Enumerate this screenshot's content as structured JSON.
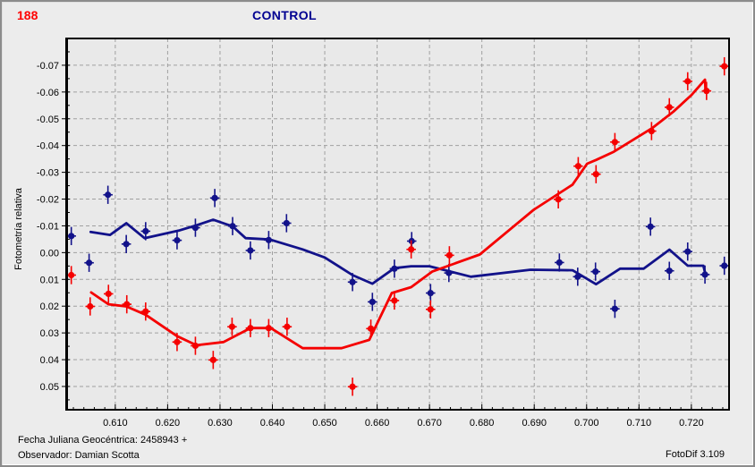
{
  "header": {
    "object_number": "188",
    "title": "CONTROL"
  },
  "footer": {
    "julian_date": "Fecha Juliana Geocéntrica: 2458943 +",
    "observer": "Observador: Damian Scotta",
    "software": "FotoDif 3.109"
  },
  "chart_data": {
    "type": "scatter",
    "title": "CONTROL",
    "xlabel": "",
    "ylabel": "Fotometría relativa",
    "grid": true,
    "legend_position": "none",
    "y_axis_inverted": true,
    "x_domain": [
      0.6008,
      0.7272
    ],
    "y_domain": [
      -0.08,
      0.0587
    ],
    "x_ticks": [
      "0.610",
      "0.620",
      "0.630",
      "0.640",
      "0.650",
      "0.660",
      "0.670",
      "0.680",
      "0.690",
      "0.700",
      "0.710",
      "0.720"
    ],
    "y_ticks": [
      "-0.07",
      "-0.06",
      "-0.05",
      "-0.04",
      "-0.03",
      "-0.02",
      "-0.01",
      "0.00",
      "0.01",
      "0.02",
      "0.03",
      "0.04",
      "0.05"
    ],
    "x_minor_step": 0.002,
    "y_minor_step": 0.005,
    "error_y_half": 0.0034,
    "error_x_half": 0.0009,
    "colors": {
      "plot_bg": "#e9e9e9",
      "grid": "#a0a0a0",
      "frame": "#000000",
      "red_series": "#f50000",
      "blue_series": "#12128a",
      "title_blue": "#000091",
      "object_red": "#ff0000"
    },
    "series": [
      {
        "id": "blue",
        "color": "#12128a",
        "points": [
          [
            0.6016,
            -0.0062
          ],
          [
            0.605,
            0.0038
          ],
          [
            0.6086,
            -0.0216
          ],
          [
            0.6121,
            -0.0032
          ],
          [
            0.6158,
            -0.008
          ],
          [
            0.6218,
            -0.0046
          ],
          [
            0.6253,
            -0.0093
          ],
          [
            0.629,
            -0.0204
          ],
          [
            0.6324,
            -0.0099
          ],
          [
            0.6358,
            -0.0008
          ],
          [
            0.6393,
            -0.0047
          ],
          [
            0.6427,
            -0.011
          ],
          [
            0.6553,
            0.011
          ],
          [
            0.6591,
            0.0184
          ],
          [
            0.6633,
            0.006
          ],
          [
            0.6666,
            -0.0043
          ],
          [
            0.6702,
            0.0151
          ],
          [
            0.6737,
            0.0076
          ],
          [
            0.6948,
            0.0037
          ],
          [
            0.6983,
            0.009
          ],
          [
            0.7017,
            0.0071
          ],
          [
            0.7054,
            0.021
          ],
          [
            0.7122,
            -0.0097
          ],
          [
            0.7158,
            0.0068
          ],
          [
            0.7193,
            -0.0004
          ],
          [
            0.7226,
            0.0082
          ],
          [
            0.7263,
            0.0049
          ]
        ],
        "trend": [
          [
            0.6053,
            -0.0077
          ],
          [
            0.609,
            -0.0066
          ],
          [
            0.6121,
            -0.011
          ],
          [
            0.6156,
            -0.0054
          ],
          [
            0.6221,
            -0.0082
          ],
          [
            0.6255,
            -0.0102
          ],
          [
            0.6287,
            -0.0123
          ],
          [
            0.6324,
            -0.0098
          ],
          [
            0.6349,
            -0.0054
          ],
          [
            0.6395,
            -0.0049
          ],
          [
            0.6458,
            -0.0012
          ],
          [
            0.65,
            0.0018
          ],
          [
            0.6553,
            0.0084
          ],
          [
            0.6591,
            0.0116
          ],
          [
            0.6633,
            0.0058
          ],
          [
            0.6665,
            0.0051
          ],
          [
            0.67,
            0.0051
          ],
          [
            0.6779,
            0.009
          ],
          [
            0.6893,
            0.0064
          ],
          [
            0.6973,
            0.0066
          ],
          [
            0.7018,
            0.0118
          ],
          [
            0.7064,
            0.006
          ],
          [
            0.7109,
            0.006
          ],
          [
            0.7158,
            -0.0011
          ],
          [
            0.7193,
            0.0049
          ],
          [
            0.7223,
            0.0049
          ],
          [
            0.7227,
            0.0082
          ]
        ]
      },
      {
        "id": "red",
        "color": "#f50000",
        "points": [
          [
            0.6016,
            0.0084
          ],
          [
            0.6052,
            0.0201
          ],
          [
            0.6087,
            0.0154
          ],
          [
            0.6122,
            0.0193
          ],
          [
            0.6158,
            0.022
          ],
          [
            0.6218,
            0.0334
          ],
          [
            0.6253,
            0.0348
          ],
          [
            0.6287,
            0.0401
          ],
          [
            0.6323,
            0.0277
          ],
          [
            0.6358,
            0.0282
          ],
          [
            0.6393,
            0.0282
          ],
          [
            0.6428,
            0.0277
          ],
          [
            0.6553,
            0.0501
          ],
          [
            0.6588,
            0.0284
          ],
          [
            0.6633,
            0.0179
          ],
          [
            0.6665,
            -0.0012
          ],
          [
            0.6702,
            0.0212
          ],
          [
            0.6738,
            0.001
          ],
          [
            0.6946,
            -0.0199
          ],
          [
            0.6984,
            -0.0323
          ],
          [
            0.7018,
            -0.0293
          ],
          [
            0.7054,
            -0.0413
          ],
          [
            0.7124,
            -0.0454
          ],
          [
            0.7158,
            -0.0543
          ],
          [
            0.7193,
            -0.064
          ],
          [
            0.7229,
            -0.0604
          ],
          [
            0.7263,
            -0.0696
          ]
        ],
        "trend": [
          [
            0.6054,
            0.0149
          ],
          [
            0.6087,
            0.0193
          ],
          [
            0.6121,
            0.0201
          ],
          [
            0.6158,
            0.0232
          ],
          [
            0.6218,
            0.0312
          ],
          [
            0.6255,
            0.0346
          ],
          [
            0.6307,
            0.0334
          ],
          [
            0.6358,
            0.0282
          ],
          [
            0.6397,
            0.0282
          ],
          [
            0.6458,
            0.0357
          ],
          [
            0.6532,
            0.0357
          ],
          [
            0.6585,
            0.0326
          ],
          [
            0.6628,
            0.0151
          ],
          [
            0.6665,
            0.0129
          ],
          [
            0.6705,
            0.0071
          ],
          [
            0.6796,
            0.0007
          ],
          [
            0.6899,
            -0.016
          ],
          [
            0.6973,
            -0.0254
          ],
          [
            0.7001,
            -0.0332
          ],
          [
            0.7018,
            -0.0346
          ],
          [
            0.7052,
            -0.0377
          ],
          [
            0.7126,
            -0.0466
          ],
          [
            0.7166,
            -0.0527
          ],
          [
            0.72,
            -0.0588
          ],
          [
            0.7226,
            -0.0646
          ],
          [
            0.7227,
            -0.0604
          ]
        ]
      }
    ]
  }
}
